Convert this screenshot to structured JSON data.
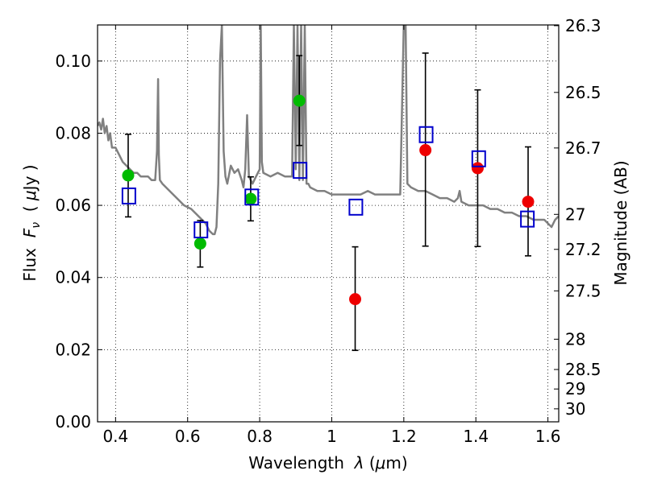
{
  "chart_data": {
    "type": "scatter",
    "title": "",
    "xlabel": "Wavelength  λ (μm)",
    "ylabel": "Flux  F_ν  ( μJy )",
    "ylabel_parts": {
      "prefix": "Flux  ",
      "symbol": "F",
      "subscript": "ν",
      "mid": "  ( ",
      "mu": "μ",
      "unit": "Jy )"
    },
    "xlabel_parts": {
      "prefix": "Wavelength  ",
      "symbol": "λ",
      "mid": " (",
      "mu": "μ",
      "unit": "m)"
    },
    "y2label": "Magnitude (AB)",
    "xlim": [
      0.35,
      1.63
    ],
    "ylim": [
      0.0,
      0.11
    ],
    "grid": true,
    "x_ticks": [
      {
        "value": 0.4,
        "label": "0.4"
      },
      {
        "value": 0.6,
        "label": "0.6"
      },
      {
        "value": 0.8,
        "label": "0.8"
      },
      {
        "value": 1.0,
        "label": "1"
      },
      {
        "value": 1.2,
        "label": "1.2"
      },
      {
        "value": 1.4,
        "label": "1.4"
      },
      {
        "value": 1.6,
        "label": "1.6"
      }
    ],
    "y_ticks": [
      {
        "value": 0.0,
        "label": "0.00"
      },
      {
        "value": 0.02,
        "label": "0.02"
      },
      {
        "value": 0.04,
        "label": "0.04"
      },
      {
        "value": 0.06,
        "label": "0.06"
      },
      {
        "value": 0.08,
        "label": "0.08"
      },
      {
        "value": 0.1,
        "label": "0.10"
      }
    ],
    "mag_ticks": [
      {
        "value": 0.1098,
        "label": "26.3"
      },
      {
        "value": 0.0913,
        "label": "26.5"
      },
      {
        "value": 0.0759,
        "label": "26.7"
      },
      {
        "value": 0.0575,
        "label": "27"
      },
      {
        "value": 0.0478,
        "label": "27.2"
      },
      {
        "value": 0.0363,
        "label": "27.5"
      },
      {
        "value": 0.0229,
        "label": "28"
      },
      {
        "value": 0.0145,
        "label": "28.5"
      },
      {
        "value": 0.0091,
        "label": "29"
      },
      {
        "value": 0.0036,
        "label": "30"
      }
    ],
    "series": [
      {
        "marker": "circle",
        "color": "#00bb00",
        "points": [
          {
            "x": 0.435,
            "y": 0.0683,
            "yerr_low": 0.0568,
            "yerr_high": 0.0797
          },
          {
            "x": 0.635,
            "y": 0.0494,
            "yerr_low": 0.0429,
            "yerr_high": 0.0558
          },
          {
            "x": 0.775,
            "y": 0.0618,
            "yerr_low": 0.0557,
            "yerr_high": 0.0679
          },
          {
            "x": 0.91,
            "y": 0.089,
            "yerr_low": 0.0766,
            "yerr_high": 0.1015
          }
        ]
      },
      {
        "marker": "circle",
        "color": "#ee0000",
        "points": [
          {
            "x": 1.065,
            "y": 0.034,
            "yerr_low": 0.0198,
            "yerr_high": 0.0485
          },
          {
            "x": 1.26,
            "y": 0.0753,
            "yerr_low": 0.0487,
            "yerr_high": 0.1022
          },
          {
            "x": 1.405,
            "y": 0.0703,
            "yerr_low": 0.0486,
            "yerr_high": 0.092
          },
          {
            "x": 1.545,
            "y": 0.061,
            "yerr_low": 0.046,
            "yerr_high": 0.0762
          }
        ]
      },
      {
        "marker": "square-open",
        "color": "#0000cc",
        "points": [
          {
            "x": 0.437,
            "y": 0.0626
          },
          {
            "x": 0.637,
            "y": 0.0532
          },
          {
            "x": 0.778,
            "y": 0.0623
          },
          {
            "x": 0.912,
            "y": 0.0697
          },
          {
            "x": 1.067,
            "y": 0.0595
          },
          {
            "x": 1.262,
            "y": 0.0796
          },
          {
            "x": 1.408,
            "y": 0.0729
          },
          {
            "x": 1.543,
            "y": 0.0562
          }
        ]
      }
    ],
    "spectrum": {
      "color": "#808080",
      "x": [
        0.35,
        0.355,
        0.36,
        0.365,
        0.37,
        0.375,
        0.38,
        0.385,
        0.39,
        0.4,
        0.41,
        0.42,
        0.43,
        0.44,
        0.45,
        0.46,
        0.47,
        0.48,
        0.49,
        0.5,
        0.51,
        0.515,
        0.518,
        0.52,
        0.523,
        0.53,
        0.55,
        0.57,
        0.59,
        0.61,
        0.63,
        0.65,
        0.66,
        0.67,
        0.675,
        0.68,
        0.685,
        0.69,
        0.695,
        0.7,
        0.705,
        0.71,
        0.72,
        0.73,
        0.74,
        0.75,
        0.755,
        0.76,
        0.765,
        0.77,
        0.78,
        0.79,
        0.8,
        0.803,
        0.806,
        0.81,
        0.83,
        0.85,
        0.87,
        0.89,
        0.895,
        0.9,
        0.905,
        0.91,
        0.915,
        0.92,
        0.925,
        0.93,
        0.935,
        0.94,
        0.96,
        0.98,
        1.0,
        1.02,
        1.04,
        1.06,
        1.08,
        1.1,
        1.12,
        1.14,
        1.16,
        1.18,
        1.19,
        1.2,
        1.205,
        1.21,
        1.22,
        1.24,
        1.26,
        1.28,
        1.3,
        1.32,
        1.34,
        1.35,
        1.355,
        1.36,
        1.38,
        1.4,
        1.42,
        1.44,
        1.46,
        1.48,
        1.5,
        1.52,
        1.54,
        1.56,
        1.58,
        1.59,
        1.6,
        1.61,
        1.62,
        1.63
      ],
      "y": [
        0.082,
        0.083,
        0.081,
        0.084,
        0.08,
        0.082,
        0.078,
        0.08,
        0.076,
        0.076,
        0.074,
        0.072,
        0.071,
        0.07,
        0.069,
        0.069,
        0.068,
        0.068,
        0.068,
        0.067,
        0.067,
        0.075,
        0.095,
        0.074,
        0.067,
        0.066,
        0.064,
        0.062,
        0.06,
        0.059,
        0.057,
        0.055,
        0.053,
        0.052,
        0.052,
        0.054,
        0.066,
        0.1,
        0.11,
        0.075,
        0.068,
        0.066,
        0.071,
        0.069,
        0.07,
        0.067,
        0.065,
        0.07,
        0.085,
        0.068,
        0.066,
        0.068,
        0.07,
        0.11,
        0.072,
        0.069,
        0.068,
        0.069,
        0.068,
        0.068,
        0.11,
        0.07,
        0.11,
        0.067,
        0.11,
        0.067,
        0.11,
        0.066,
        0.066,
        0.065,
        0.064,
        0.064,
        0.063,
        0.063,
        0.063,
        0.063,
        0.063,
        0.064,
        0.063,
        0.063,
        0.063,
        0.063,
        0.063,
        0.11,
        0.11,
        0.066,
        0.065,
        0.064,
        0.064,
        0.063,
        0.062,
        0.062,
        0.061,
        0.062,
        0.064,
        0.061,
        0.06,
        0.06,
        0.06,
        0.059,
        0.059,
        0.058,
        0.058,
        0.057,
        0.057,
        0.056,
        0.056,
        0.056,
        0.055,
        0.054,
        0.056,
        0.057
      ]
    }
  }
}
